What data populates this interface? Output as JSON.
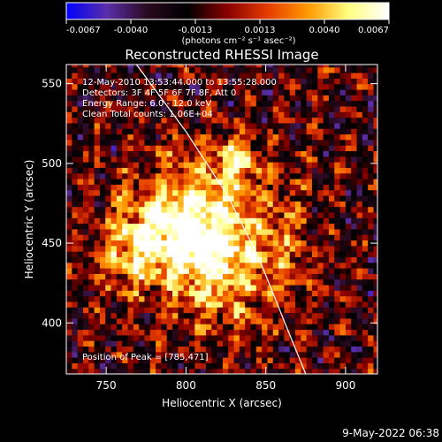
{
  "chart_data": {
    "type": "heatmap",
    "title": "Reconstructed RHESSI Image",
    "xlabel": "Heliocentric X (arcsec)",
    "ylabel": "Heliocentric Y (arcsec)",
    "xlim": [
      725,
      920
    ],
    "ylim": [
      368,
      562
    ],
    "x_ticks": [
      750,
      800,
      850,
      900
    ],
    "y_ticks": [
      400,
      450,
      500,
      550
    ],
    "colorbar": {
      "min": -0.0067,
      "max": 0.0067,
      "ticks": [
        "-0.0067",
        "-0.0040",
        "-0.0013",
        "0.0013",
        "0.0040",
        "0.0067"
      ],
      "unit": "(photons cm⁻² s⁻¹ asec⁻²)",
      "colors": [
        "#0000ff",
        "#5a2ea8",
        "#2a0a20",
        "#000000",
        "#8a0000",
        "#e63c00",
        "#ff9a00",
        "#ffff80",
        "#ffffff"
      ]
    },
    "annotations": [
      "12-May-2010 13:53:44.000 to 13:55:28.000",
      "Detectors: 3F 4F 5F 6F 7F 8F, Att 0",
      "Energy Range: 6.0 - 12.0 keV",
      "Clean     Total counts: 1.06E+04"
    ],
    "peak_label": "Position of Peak = [785,471]",
    "peak": {
      "x": 785,
      "y": 471
    },
    "sources": [
      {
        "x": 800,
        "y": 462,
        "sx": 28,
        "sy": 22,
        "amp": 0.0085
      },
      {
        "x": 832,
        "y": 503,
        "sx": 10,
        "sy": 12,
        "amp": 0.006
      },
      {
        "x": 820,
        "y": 428,
        "sx": 22,
        "sy": 24,
        "amp": 0.0045
      },
      {
        "x": 862,
        "y": 450,
        "sx": 12,
        "sy": 28,
        "amp": 0.0025
      },
      {
        "x": 765,
        "y": 440,
        "sx": 14,
        "sy": 16,
        "amp": 0.0035
      },
      {
        "x": 800,
        "y": 510,
        "sx": 10,
        "sy": 10,
        "amp": 0.002
      }
    ],
    "limb": [
      [
        769,
        562
      ],
      [
        800,
        520
      ],
      [
        826,
        480
      ],
      [
        846,
        440
      ],
      [
        862,
        400
      ],
      [
        875,
        368
      ]
    ]
  },
  "timestamp": "9-May-2022 06:38"
}
